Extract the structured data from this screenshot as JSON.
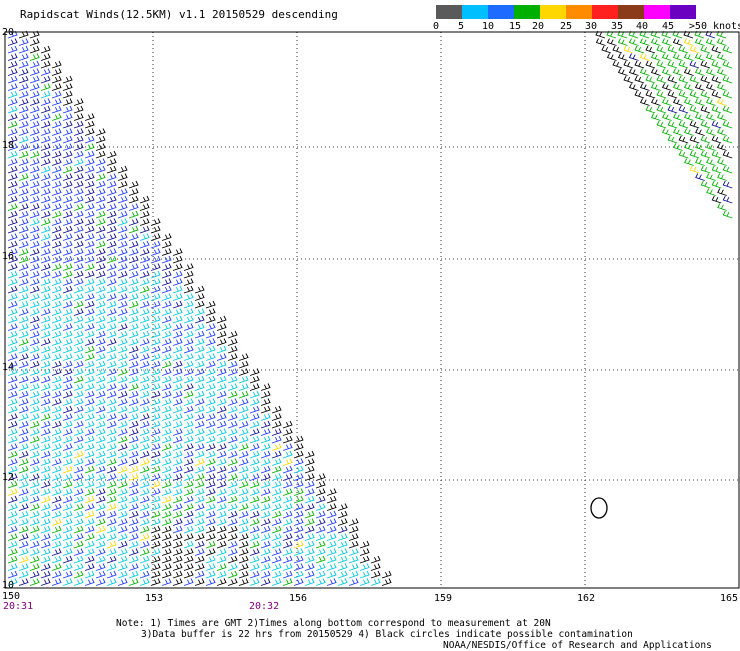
{
  "title": "Rapidscat Winds(12.5KM) v1.1 20150529 descending",
  "colorbar": {
    "unit_label": ">50 knots",
    "ticks": [
      "0",
      "5",
      "10",
      "15",
      "20",
      "25",
      "30",
      "35",
      "40",
      "45"
    ],
    "colors": [
      "#5a5a5a",
      "#00bfff",
      "#1e6cff",
      "#00b000",
      "#ffd700",
      "#ff8c00",
      "#ff2020",
      "#8b3a1a",
      "#ff00ff",
      "#6a00c0"
    ]
  },
  "axes": {
    "x_labels": [
      "150",
      "153",
      "156",
      "159",
      "162",
      "165"
    ],
    "y_labels": [
      "20",
      "18",
      "16",
      "14",
      "12",
      "10"
    ],
    "time_labels": [
      "20:31",
      "20:32"
    ]
  },
  "notes": {
    "line1": "Note: 1) Times are GMT 2)Times along bottom correspond to measurement at 20N",
    "line2": "3)Data buffer is 22 hrs from 20150529 4) Black circles indicate possible contamination",
    "credit": "NOAA/NESDIS/Office of Research and Applications"
  },
  "wind_colors": {
    "blue": "#1e3cff",
    "navy": "#101090",
    "cyan": "#00c8e0",
    "green": "#00b000",
    "yellow": "#ffd700",
    "black": "#000000"
  }
}
